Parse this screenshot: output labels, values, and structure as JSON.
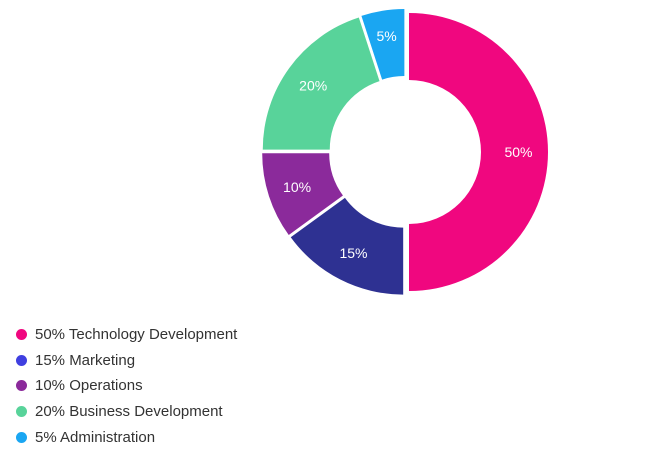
{
  "chart_data": {
    "type": "pie",
    "variant": "donut",
    "start_angle_deg": 0,
    "direction": "clockwise",
    "slices": [
      {
        "legend": "50% Technology Development",
        "label": "50%",
        "value": 50,
        "color": "#f0077f"
      },
      {
        "legend": "15% Marketing",
        "label": "15%",
        "value": 15,
        "color": "#2e3192"
      },
      {
        "legend": "10% Operations",
        "label": "10%",
        "value": 10,
        "color": "#8b2a9b"
      },
      {
        "legend": "20% Business Development",
        "label": "20%",
        "value": 20,
        "color": "#58d39a"
      },
      {
        "legend": "5% Administration",
        "label": "5%",
        "value": 5,
        "color": "#1aa6f2"
      }
    ],
    "legend_position": "bottom-left",
    "legend_marker_colors": [
      "#f0077f",
      "#3f3fe0",
      "#8b2a9b",
      "#58d39a",
      "#1aa6f2"
    ],
    "legend_order": [
      0,
      1,
      2,
      3,
      4
    ]
  }
}
